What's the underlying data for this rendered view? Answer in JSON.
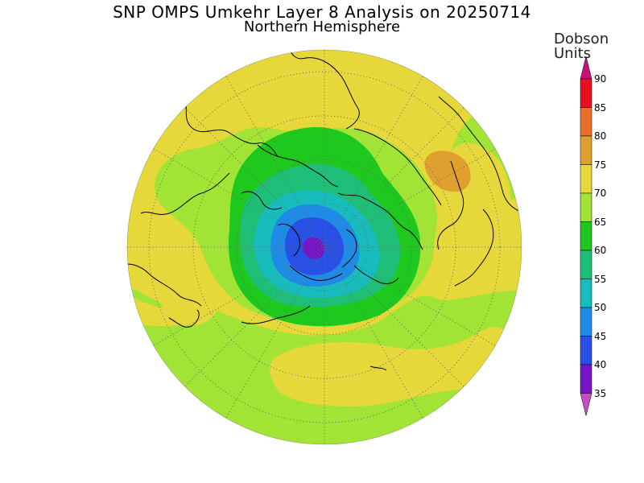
{
  "title": "SNP OMPS Umkehr Layer 8 Analysis on 20250714",
  "subtitle": "Northern Hemisphere",
  "colorbar": {
    "title_line1": "Dobson",
    "title_line2": "Units",
    "ticks": [
      "90",
      "85",
      "80",
      "75",
      "70",
      "65",
      "60",
      "55",
      "50",
      "45",
      "40",
      "35"
    ],
    "bands": [
      {
        "max": "over",
        "color": "#c8107a"
      },
      {
        "max": "90",
        "color": "#e8101e"
      },
      {
        "max": "85",
        "color": "#e86e28"
      },
      {
        "max": "80",
        "color": "#e0a030"
      },
      {
        "max": "75",
        "color": "#e6d83a"
      },
      {
        "max": "70",
        "color": "#a2e436"
      },
      {
        "max": "65",
        "color": "#1ec81e"
      },
      {
        "max": "60",
        "color": "#1ebe78"
      },
      {
        "max": "55",
        "color": "#18bcbc"
      },
      {
        "max": "50",
        "color": "#1e8ce6"
      },
      {
        "max": "45",
        "color": "#2850e6"
      },
      {
        "max": "40",
        "color": "#7814c8"
      },
      {
        "max": "under",
        "color": "#c84cc8"
      }
    ]
  },
  "colors": {
    "background_field": "#a2e436",
    "coastline": "#000000",
    "grid": "#666666"
  }
}
